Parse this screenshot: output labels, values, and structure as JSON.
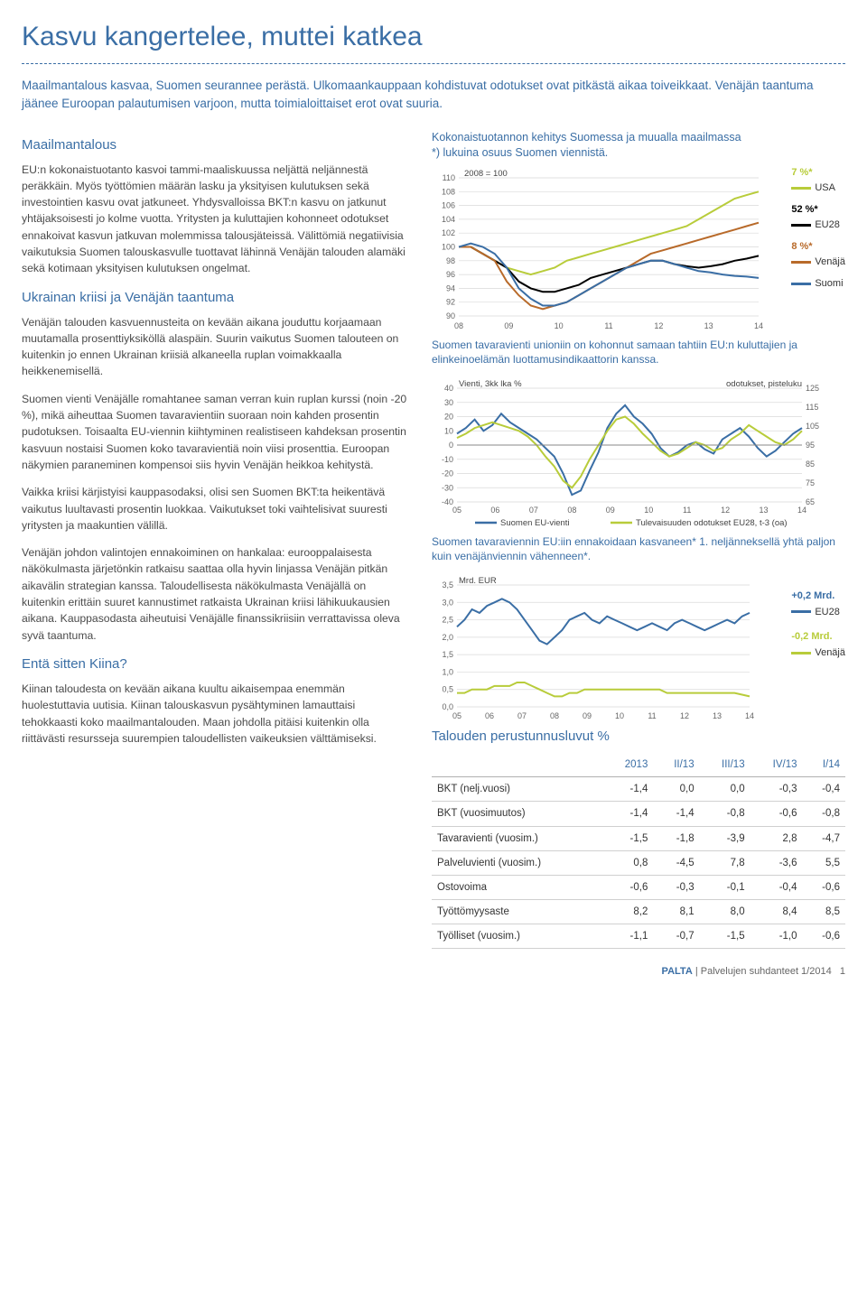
{
  "title": "Kasvu kangertelee, muttei katkea",
  "lead": "Maailmantalous kasvaa, Suomen seurannee perästä. Ulkomaankauppaan kohdistuvat odotukset ovat pitkästä aikaa toiveikkaat. Venäjän taantuma jäänee Euroopan palautumisen varjoon, mutta toimialoittaiset erot ovat suuria.",
  "left": {
    "h1": "Maailmantalous",
    "p1": "EU:n kokonaistuotanto kasvoi tammi-maaliskuussa neljättä neljännestä peräkkäin. Myös työttömien määrän lasku ja yksityisen kulutuksen sekä investointien kasvu ovat jatkuneet. Yhdysvalloissa BKT:n kasvu on jatkunut yhtäjaksoisesti jo kolme vuotta. Yritysten ja kuluttajien kohonneet odotukset ennakoivat kasvun jatkuvan molemmissa talousjäteissä. Välittömiä negatiivisia vaikutuksia Suomen talouskasvulle tuottavat lähinnä Venäjän talouden alamäki sekä kotimaan yksityisen kulutuksen ongelmat.",
    "h2": "Ukrainan kriisi ja Venäjän taantuma",
    "p2": "Venäjän talouden kasvuennusteita on kevään aikana jouduttu korjaamaan muutamalla prosenttiyksiköllä alaspäin. Suurin vaikutus Suomen talouteen on kuitenkin jo ennen Ukrainan kriisiä alkaneella ruplan voimakkaalla heikkenemisellä.",
    "p3": "Suomen vienti Venäjälle romahtanee saman verran kuin ruplan kurssi (noin -20 %), mikä aiheuttaa Suomen tavaravientiin suoraan noin kahden prosentin pudotuksen. Toisaalta EU-viennin kiihtyminen realistiseen kahdeksan prosentin kasvuun nostaisi Suomen koko tavaravientiä noin viisi prosenttia. Euroopan näkymien paraneminen kompensoi siis hyvin Venäjän heikkoa kehitystä.",
    "p4": "Vaikka kriisi kärjistyisi kauppasodaksi, olisi sen Suomen BKT:ta heikentävä vaikutus luultavasti prosentin luokkaa. Vaikutukset toki vaihtelisivat suuresti yritysten ja maakuntien välillä.",
    "p5": "Venäjän johdon valintojen ennakoiminen on hankalaa: eurooppalaisesta näkökulmasta järjetönkin ratkaisu saattaa olla hyvin linjassa Venäjän pitkän aikavälin strategian kanssa. Taloudellisesta näkökulmasta Venäjällä on kuitenkin erittäin suuret kannustimet ratkaista Ukrainan kriisi lähikuukausien aikana. Kauppasodasta aiheutuisi Venäjälle finanssikriisiin verrattavissa oleva syvä taantuma.",
    "h3": "Entä sitten Kiina?",
    "p6": "Kiinan taloudesta on kevään aikana kuultu aikaisempaa enemmän huolestuttavia uutisia. Kiinan talouskasvun pysähtyminen lamauttaisi tehokkaasti koko maailmantalouden. Maan johdolla pitäisi kuitenkin olla riittävästi resursseja suurempien taloudellisten vaikeuksien välttämiseksi."
  },
  "chart1": {
    "title": "Kokonaistuotannon kehitys Suomessa ja muualla maailmassa",
    "subtitle": "*) lukuina osuus Suomen viennistä.",
    "index_label": "2008 = 100",
    "ylim": [
      90,
      110
    ],
    "ytick_step": 2,
    "x_labels": [
      "08",
      "09",
      "10",
      "11",
      "12",
      "13",
      "14"
    ],
    "background": "#ffffff",
    "grid_color": "#d9d9d9",
    "series": [
      {
        "name": "USA",
        "color": "#b8cc3a",
        "val_label": "7 %*",
        "points": [
          100,
          100,
          99,
          98,
          97,
          96.5,
          96,
          96.5,
          97,
          98,
          98.5,
          99,
          99.5,
          100,
          100.5,
          101,
          101.5,
          102,
          102.5,
          103,
          104,
          105,
          106,
          107,
          107.5,
          108
        ]
      },
      {
        "name": "EU28",
        "color": "#000000",
        "val_label": "52 %*",
        "points": [
          100,
          100,
          99,
          98,
          97,
          95,
          94,
          93.5,
          93.5,
          94,
          94.5,
          95.5,
          96,
          96.5,
          97,
          97.5,
          98,
          98,
          97.5,
          97.2,
          97,
          97.2,
          97.5,
          98,
          98.3,
          98.7
        ]
      },
      {
        "name": "Venäjä",
        "color": "#b86a2a",
        "val_label": "8 %*",
        "points": [
          100,
          100,
          99,
          98,
          95,
          93,
          91.5,
          91,
          91.5,
          92,
          93,
          94,
          95,
          96,
          97,
          98,
          99,
          99.5,
          100,
          100.5,
          101,
          101.5,
          102,
          102.5,
          103,
          103.5
        ]
      },
      {
        "name": "Suomi",
        "color": "#3a6ea5",
        "val_label": "",
        "points": [
          100,
          100.5,
          100,
          99,
          97,
          94,
          92.5,
          91.5,
          91.5,
          92,
          93,
          94,
          95,
          96,
          97,
          97.5,
          98,
          98,
          97.5,
          97,
          96.5,
          96.3,
          96,
          95.8,
          95.7,
          95.5
        ]
      }
    ],
    "caption": "Suomen tavaravienti unioniin on kohonnut samaan tahtiin EU:n kuluttajien ja elinkeinoelämän luottamusindikaattorin kanssa."
  },
  "chart2": {
    "left_axis_label": "Vienti, 3kk lka %",
    "right_axis_label": "odotukset, pisteluku",
    "x_labels": [
      "05",
      "06",
      "07",
      "08",
      "09",
      "10",
      "11",
      "12",
      "13",
      "14"
    ],
    "ylim_left": [
      -40,
      40
    ],
    "ytick_left": 10,
    "ylim_right": [
      65,
      125
    ],
    "ytick_right": 10,
    "grid_color": "#d9d9d9",
    "series": [
      {
        "name": "Suomen EU-vienti",
        "color": "#3a6ea5",
        "points": [
          8,
          12,
          18,
          10,
          14,
          22,
          16,
          12,
          8,
          4,
          -2,
          -8,
          -20,
          -35,
          -32,
          -18,
          -5,
          12,
          22,
          28,
          20,
          15,
          8,
          -2,
          -8,
          -5,
          0,
          2,
          -3,
          -6,
          4,
          8,
          12,
          6,
          -2,
          -8,
          -4,
          2,
          8,
          12
        ]
      },
      {
        "name": "Tulevaisuuden odotukset EU28, t-3 (oa)",
        "color": "#b8cc3a",
        "points": [
          5,
          8,
          12,
          14,
          16,
          14,
          12,
          10,
          6,
          0,
          -8,
          -15,
          -25,
          -30,
          -22,
          -10,
          0,
          10,
          18,
          20,
          15,
          8,
          2,
          -4,
          -8,
          -6,
          -2,
          2,
          0,
          -4,
          -2,
          4,
          8,
          14,
          10,
          6,
          2,
          0,
          4,
          10
        ]
      }
    ],
    "legend_left": "Suomen EU-vienti",
    "legend_right": "Tulevaisuuden odotukset EU28, t-3 (oa)",
    "caption": "Suomen tavaraviennin EU:iin ennakoidaan kasvaneen* 1. neljänneksellä yhtä paljon kuin venäjänviennin vähenneen*."
  },
  "chart3": {
    "y_label": "Mrd. EUR",
    "x_labels": [
      "05",
      "06",
      "07",
      "08",
      "09",
      "10",
      "11",
      "12",
      "13",
      "14"
    ],
    "ylim": [
      0.0,
      3.5
    ],
    "ytick_step": 0.5,
    "grid_color": "#d9d9d9",
    "series": [
      {
        "name": "EU28",
        "color": "#3a6ea5",
        "val_label": "+0,2 Mrd.",
        "points": [
          2.3,
          2.5,
          2.8,
          2.7,
          2.9,
          3.0,
          3.1,
          3.0,
          2.8,
          2.5,
          2.2,
          1.9,
          1.8,
          2.0,
          2.2,
          2.5,
          2.6,
          2.7,
          2.5,
          2.4,
          2.6,
          2.5,
          2.4,
          2.3,
          2.2,
          2.3,
          2.4,
          2.3,
          2.2,
          2.4,
          2.5,
          2.4,
          2.3,
          2.2,
          2.3,
          2.4,
          2.5,
          2.4,
          2.6,
          2.7
        ]
      },
      {
        "name": "Venäjä",
        "color": "#b8cc3a",
        "val_label": "-0,2 Mrd.",
        "points": [
          0.4,
          0.4,
          0.5,
          0.5,
          0.5,
          0.6,
          0.6,
          0.6,
          0.7,
          0.7,
          0.6,
          0.5,
          0.4,
          0.3,
          0.3,
          0.4,
          0.4,
          0.5,
          0.5,
          0.5,
          0.5,
          0.5,
          0.5,
          0.5,
          0.5,
          0.5,
          0.5,
          0.5,
          0.4,
          0.4,
          0.4,
          0.4,
          0.4,
          0.4,
          0.4,
          0.4,
          0.4,
          0.4,
          0.35,
          0.3
        ]
      }
    ]
  },
  "table": {
    "title": "Talouden perustunnusluvut %",
    "headers": [
      "",
      "2013",
      "II/13",
      "III/13",
      "IV/13",
      "I/14"
    ],
    "rows": [
      [
        "BKT (nelj.vuosi)",
        "-1,4",
        "0,0",
        "0,0",
        "-0,3",
        "-0,4"
      ],
      [
        "BKT (vuosimuutos)",
        "-1,4",
        "-1,4",
        "-0,8",
        "-0,6",
        "-0,8"
      ],
      [
        "Tavaravienti (vuosim.)",
        "-1,5",
        "-1,8",
        "-3,9",
        "2,8",
        "-4,7"
      ],
      [
        "Palveluvienti (vuosim.)",
        "0,8",
        "-4,5",
        "7,8",
        "-3,6",
        "5,5"
      ],
      [
        "Ostovoima",
        "-0,6",
        "-0,3",
        "-0,1",
        "-0,4",
        "-0,6"
      ],
      [
        "Työttömyysaste",
        "8,2",
        "8,1",
        "8,0",
        "8,4",
        "8,5"
      ],
      [
        "Työlliset (vuosim.)",
        "-1,1",
        "-0,7",
        "-1,5",
        "-1,0",
        "-0,6"
      ]
    ]
  },
  "footer": {
    "brand": "PALTA",
    "text": "Palvelujen suhdanteet 1/2014",
    "page": "1"
  }
}
